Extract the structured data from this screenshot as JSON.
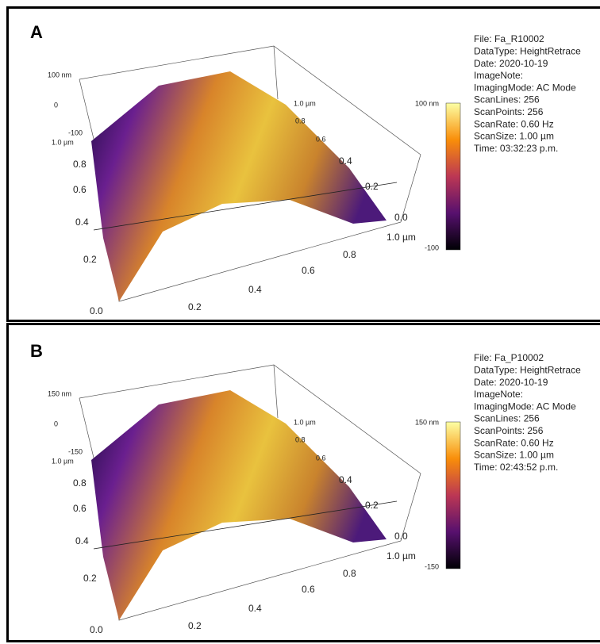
{
  "panels": [
    {
      "label": "A",
      "z_axis": [
        "100 nm",
        "0",
        "-100"
      ],
      "y_axis": [
        "1.0 µm",
        "0.8",
        "0.6",
        "0.4",
        "0.2",
        "0.0"
      ],
      "x_axis": [
        "0.2",
        "0.4",
        "0.6",
        "0.8",
        "1.0 µm"
      ],
      "back_axis": [
        "1.0 µm",
        "0.8",
        "0.6",
        "0.4",
        "0.2",
        "0.0"
      ],
      "colorbar": [
        "100 nm",
        "-100"
      ],
      "metadata": [
        "File: Fa_R10002",
        "DataType: HeightRetrace",
        "Date: 2020-10-19",
        "ImageNote:",
        "ImagingMode: AC Mode",
        "ScanLines: 256",
        "ScanPoints: 256",
        "ScanRate: 0.60 Hz",
        "ScanSize: 1.00 µm",
        "Time: 03:32:23 p.m."
      ]
    },
    {
      "label": "B",
      "z_axis": [
        "150 nm",
        "0",
        "-150"
      ],
      "y_axis": [
        "1.0 µm",
        "0.8",
        "0.6",
        "0.4",
        "0.2",
        "0.0"
      ],
      "x_axis": [
        "0.2",
        "0.4",
        "0.6",
        "0.8",
        "1.0 µm"
      ],
      "back_axis": [
        "1.0 µm",
        "0.8",
        "0.6",
        "0.4",
        "0.2",
        "0.0"
      ],
      "colorbar": [
        "150 nm",
        "-150"
      ],
      "metadata": [
        "File: Fa_P10002",
        "DataType: HeightRetrace",
        "Date: 2020-10-19",
        "ImageNote:",
        "ImagingMode: AC Mode",
        "ScanLines: 256",
        "ScanPoints: 256",
        "ScanRate: 0.60 Hz",
        "ScanSize: 1.00 µm",
        "Time: 02:43:52 p.m."
      ]
    }
  ]
}
